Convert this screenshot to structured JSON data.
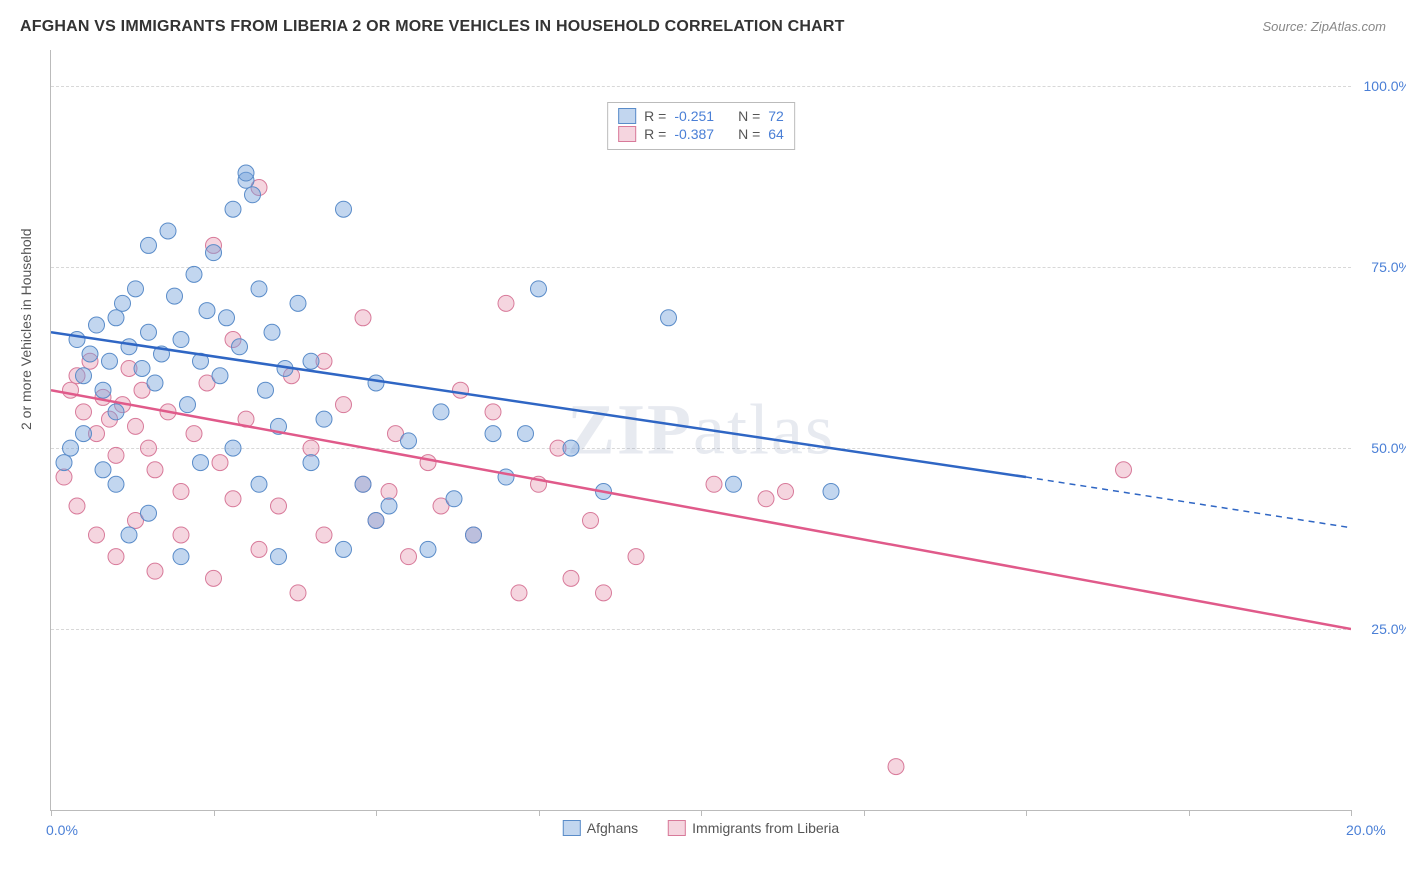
{
  "title": "AFGHAN VS IMMIGRANTS FROM LIBERIA 2 OR MORE VEHICLES IN HOUSEHOLD CORRELATION CHART",
  "source": "Source: ZipAtlas.com",
  "ylabel": "2 or more Vehicles in Household",
  "watermark": "ZIPatlas",
  "chart": {
    "type": "scatter",
    "xlim": [
      0,
      20
    ],
    "ylim": [
      0,
      105
    ],
    "xticks": [
      0,
      2.5,
      5,
      7.5,
      10,
      12.5,
      15,
      17.5,
      20
    ],
    "yticks": [
      25,
      50,
      75,
      100
    ],
    "xtick_labels": {
      "0": "0.0%",
      "20": "20.0%"
    },
    "ytick_labels": {
      "25": "25.0%",
      "50": "50.0%",
      "75": "75.0%",
      "100": "100.0%"
    },
    "grid_color": "#d8d8d8",
    "background": "#ffffff",
    "series": {
      "afghans": {
        "label": "Afghans",
        "fill": "rgba(120,165,220,0.45)",
        "stroke": "#5a8cc9",
        "R": "-0.251",
        "N": "72",
        "points": [
          [
            0.4,
            65
          ],
          [
            0.5,
            60
          ],
          [
            0.6,
            63
          ],
          [
            0.7,
            67
          ],
          [
            0.8,
            58
          ],
          [
            0.9,
            62
          ],
          [
            1.0,
            55
          ],
          [
            1.0,
            68
          ],
          [
            1.1,
            70
          ],
          [
            1.2,
            64
          ],
          [
            1.3,
            72
          ],
          [
            1.4,
            61
          ],
          [
            1.5,
            66
          ],
          [
            1.5,
            78
          ],
          [
            1.6,
            59
          ],
          [
            1.7,
            63
          ],
          [
            1.8,
            80
          ],
          [
            1.9,
            71
          ],
          [
            2.0,
            65
          ],
          [
            2.1,
            56
          ],
          [
            2.2,
            74
          ],
          [
            2.3,
            62
          ],
          [
            2.4,
            69
          ],
          [
            2.5,
            77
          ],
          [
            2.6,
            60
          ],
          [
            2.7,
            68
          ],
          [
            2.8,
            83
          ],
          [
            2.9,
            64
          ],
          [
            3.0,
            87
          ],
          [
            3.1,
            85
          ],
          [
            3.2,
            72
          ],
          [
            3.3,
            58
          ],
          [
            3.4,
            66
          ],
          [
            3.5,
            53
          ],
          [
            3.6,
            61
          ],
          [
            3.8,
            70
          ],
          [
            4.0,
            48
          ],
          [
            4.2,
            54
          ],
          [
            4.5,
            83
          ],
          [
            4.8,
            45
          ],
          [
            5.0,
            59
          ],
          [
            5.2,
            42
          ],
          [
            5.5,
            51
          ],
          [
            5.8,
            36
          ],
          [
            6.0,
            55
          ],
          [
            6.2,
            43
          ],
          [
            6.5,
            38
          ],
          [
            6.8,
            52
          ],
          [
            7.0,
            46
          ],
          [
            7.3,
            52
          ],
          [
            7.5,
            72
          ],
          [
            8.0,
            50
          ],
          [
            8.5,
            44
          ],
          [
            9.5,
            68
          ],
          [
            10.5,
            45
          ],
          [
            12.0,
            44
          ],
          [
            0.3,
            50
          ],
          [
            0.2,
            48
          ],
          [
            0.5,
            52
          ],
          [
            0.8,
            47
          ],
          [
            1.0,
            45
          ],
          [
            1.2,
            38
          ],
          [
            1.5,
            41
          ],
          [
            2.0,
            35
          ],
          [
            2.3,
            48
          ],
          [
            2.8,
            50
          ],
          [
            3.2,
            45
          ],
          [
            3.5,
            35
          ],
          [
            4.0,
            62
          ],
          [
            4.5,
            36
          ],
          [
            5.0,
            40
          ],
          [
            3.0,
            88
          ]
        ],
        "trend": {
          "x1": 0,
          "y1": 66,
          "x2": 15,
          "y2": 46,
          "dash_x2": 20,
          "dash_y2": 39,
          "color": "#2f66c4",
          "width": 2.5
        }
      },
      "liberia": {
        "label": "Immigrants from Liberia",
        "fill": "rgba(230,150,175,0.40)",
        "stroke": "#d87a9a",
        "R": "-0.387",
        "N": "64",
        "points": [
          [
            0.3,
            58
          ],
          [
            0.4,
            60
          ],
          [
            0.5,
            55
          ],
          [
            0.6,
            62
          ],
          [
            0.7,
            52
          ],
          [
            0.8,
            57
          ],
          [
            0.9,
            54
          ],
          [
            1.0,
            49
          ],
          [
            1.1,
            56
          ],
          [
            1.2,
            61
          ],
          [
            1.3,
            53
          ],
          [
            1.4,
            58
          ],
          [
            1.5,
            50
          ],
          [
            1.6,
            47
          ],
          [
            1.8,
            55
          ],
          [
            2.0,
            44
          ],
          [
            2.2,
            52
          ],
          [
            2.4,
            59
          ],
          [
            2.5,
            78
          ],
          [
            2.6,
            48
          ],
          [
            2.8,
            65
          ],
          [
            3.0,
            54
          ],
          [
            3.2,
            86
          ],
          [
            3.5,
            42
          ],
          [
            3.7,
            60
          ],
          [
            4.0,
            50
          ],
          [
            4.2,
            38
          ],
          [
            4.5,
            56
          ],
          [
            4.8,
            45
          ],
          [
            5.0,
            40
          ],
          [
            5.3,
            52
          ],
          [
            5.5,
            35
          ],
          [
            5.8,
            48
          ],
          [
            6.0,
            42
          ],
          [
            6.3,
            58
          ],
          [
            6.5,
            38
          ],
          [
            7.0,
            70
          ],
          [
            7.2,
            30
          ],
          [
            7.5,
            45
          ],
          [
            8.0,
            32
          ],
          [
            8.3,
            40
          ],
          [
            8.5,
            30
          ],
          [
            9.0,
            35
          ],
          [
            10.2,
            45
          ],
          [
            11.0,
            43
          ],
          [
            11.3,
            44
          ],
          [
            13.0,
            6
          ],
          [
            16.5,
            47
          ],
          [
            0.2,
            46
          ],
          [
            0.4,
            42
          ],
          [
            0.7,
            38
          ],
          [
            1.0,
            35
          ],
          [
            1.3,
            40
          ],
          [
            1.6,
            33
          ],
          [
            2.0,
            38
          ],
          [
            2.5,
            32
          ],
          [
            2.8,
            43
          ],
          [
            3.2,
            36
          ],
          [
            3.8,
            30
          ],
          [
            4.2,
            62
          ],
          [
            4.8,
            68
          ],
          [
            5.2,
            44
          ],
          [
            6.8,
            55
          ],
          [
            7.8,
            50
          ]
        ],
        "trend": {
          "x1": 0,
          "y1": 58,
          "x2": 20,
          "y2": 25,
          "color": "#e05a8a",
          "width": 2.5
        }
      }
    },
    "marker_r": 8
  }
}
